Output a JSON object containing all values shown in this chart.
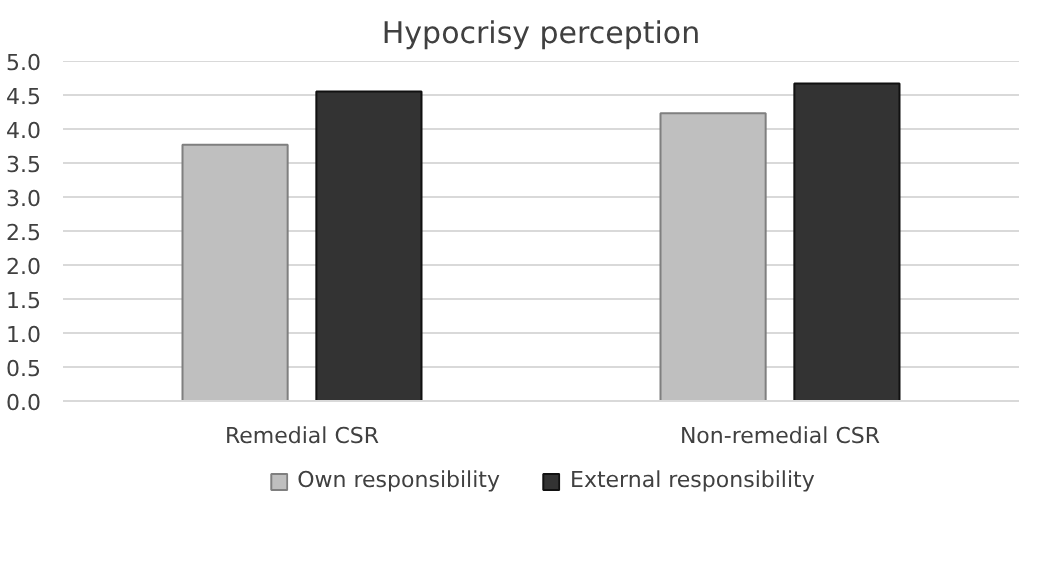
{
  "chart_data": {
    "type": "bar",
    "title": "Hypocrisy perception",
    "categories": [
      "Remedial CSR",
      "Non-remedial CSR"
    ],
    "series": [
      {
        "name": "Own responsibility",
        "color": "#bfbfbf",
        "values": [
          3.77,
          4.23
        ]
      },
      {
        "name": "External responsibility",
        "color": "#333333",
        "values": [
          4.55,
          4.67
        ]
      }
    ],
    "ylim": [
      0,
      5
    ],
    "yticks": [
      {
        "value": 0,
        "label": "0.0"
      },
      0.5,
      {
        "value": 1,
        "label": "1.0"
      },
      1.5,
      {
        "value": 2,
        "label": "2.0"
      },
      2.5,
      {
        "value": 3,
        "label": "3.0"
      },
      3.5,
      {
        "value": 4,
        "label": "4.0"
      },
      4.5,
      {
        "value": 5,
        "label": "5.0"
      }
    ],
    "grid": "y",
    "legend": "bottom"
  }
}
